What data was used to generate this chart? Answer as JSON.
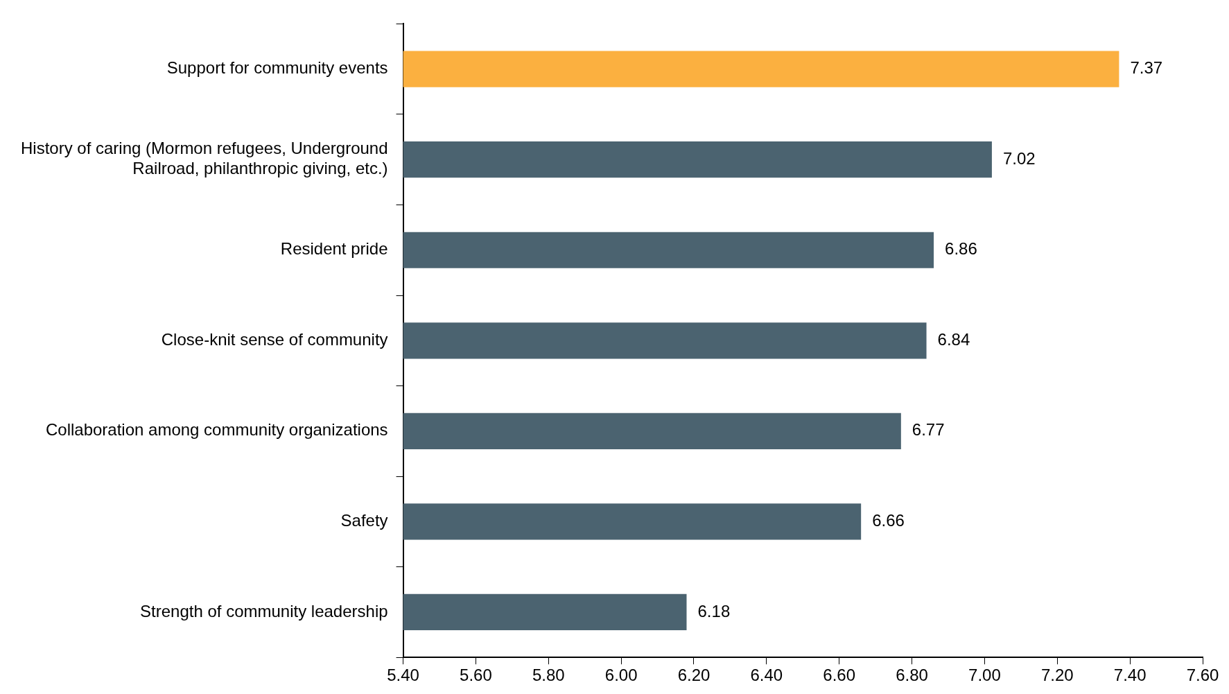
{
  "chart_data": {
    "type": "bar",
    "orientation": "horizontal",
    "categories": [
      "Support for community events",
      "History of caring (Mormon refugees, Underground Railroad, philanthropic giving, etc.)",
      "Resident pride",
      "Close-knit sense of community",
      "Collaboration among community organizations",
      "Safety",
      "Strength of community leadership"
    ],
    "values": [
      7.37,
      7.02,
      6.86,
      6.84,
      6.77,
      6.66,
      6.18
    ],
    "colors": [
      "#fbb040",
      "#4b6370",
      "#4b6370",
      "#4b6370",
      "#4b6370",
      "#4b6370",
      "#4b6370"
    ],
    "xlim": [
      5.4,
      7.6
    ],
    "xticks": [
      {
        "value": 5.4,
        "label": "5.40"
      },
      {
        "value": 5.6,
        "label": "5.60"
      },
      {
        "value": 5.8,
        "label": "5.80"
      },
      {
        "value": 6.0,
        "label": "6.00"
      },
      {
        "value": 6.2,
        "label": "6.20"
      },
      {
        "value": 6.4,
        "label": "6.40"
      },
      {
        "value": 6.6,
        "label": "6.60"
      },
      {
        "value": 6.8,
        "label": "6.80"
      },
      {
        "value": 7.0,
        "label": "7.00"
      },
      {
        "value": 7.2,
        "label": "7.20"
      },
      {
        "value": 7.4,
        "label": "7.40"
      },
      {
        "value": 7.6,
        "label": "7.60"
      }
    ],
    "data_labels": true,
    "grid": false,
    "legend": false
  }
}
